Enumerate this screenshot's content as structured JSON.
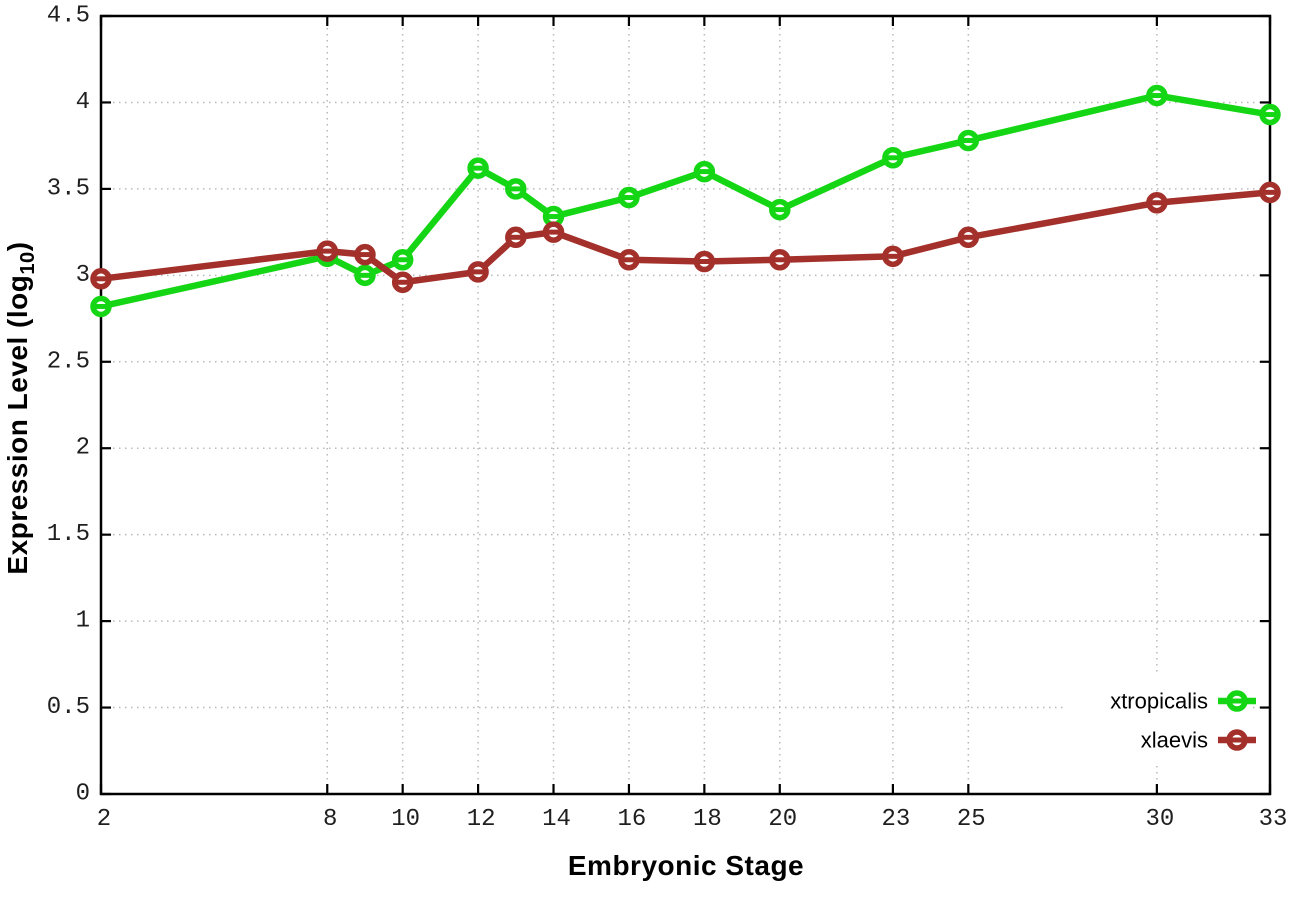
{
  "figure": {
    "xlabel": "Embryonic Stage",
    "ylabel_prefix": "Expression Level (log",
    "ylabel_sub": "10",
    "ylabel_suffix": ")"
  },
  "colors": {
    "background": "#ffffff",
    "axis": "#000000",
    "grid": "#b9b9b9",
    "tick_label": "#1f1f1f",
    "legend_text": "#000000",
    "xtropicalis": "#15d615",
    "xlaevis": "#a3302a"
  },
  "chart_data": {
    "type": "line",
    "title": "",
    "xlabel": "Embryonic Stage",
    "ylabel": "Expression Level (log10)",
    "xlim": [
      2,
      33
    ],
    "ylim": [
      0,
      4.5
    ],
    "grid": true,
    "legend_position": "bottom-right",
    "x_ticks": [
      2,
      8,
      10,
      12,
      14,
      16,
      18,
      20,
      23,
      25,
      30,
      33
    ],
    "x_tick_labels": [
      "2",
      "8",
      "10",
      "12",
      "14",
      "16",
      "18",
      "20",
      "23",
      "25",
      "30",
      "33"
    ],
    "y_ticks": [
      0,
      0.5,
      1,
      1.5,
      2,
      2.5,
      3,
      3.5,
      4,
      4.5
    ],
    "y_tick_labels": [
      "0",
      "0.5",
      "1",
      "1.5",
      "2",
      "2.5",
      "3",
      "3.5",
      "4",
      "4.5"
    ],
    "x": [
      2,
      8,
      9,
      10,
      12,
      13,
      14,
      16,
      18,
      20,
      23,
      25,
      30,
      33
    ],
    "series": [
      {
        "name": "xtropicalis",
        "color_key": "xtropicalis",
        "values": [
          2.82,
          3.11,
          3.0,
          3.09,
          3.62,
          3.5,
          3.34,
          3.45,
          3.6,
          3.38,
          3.68,
          3.78,
          4.04,
          3.93
        ]
      },
      {
        "name": "xlaevis",
        "color_key": "xlaevis",
        "values": [
          2.98,
          3.14,
          3.12,
          2.96,
          3.02,
          3.22,
          3.25,
          3.09,
          3.08,
          3.09,
          3.11,
          3.22,
          3.42,
          3.48
        ]
      }
    ]
  }
}
